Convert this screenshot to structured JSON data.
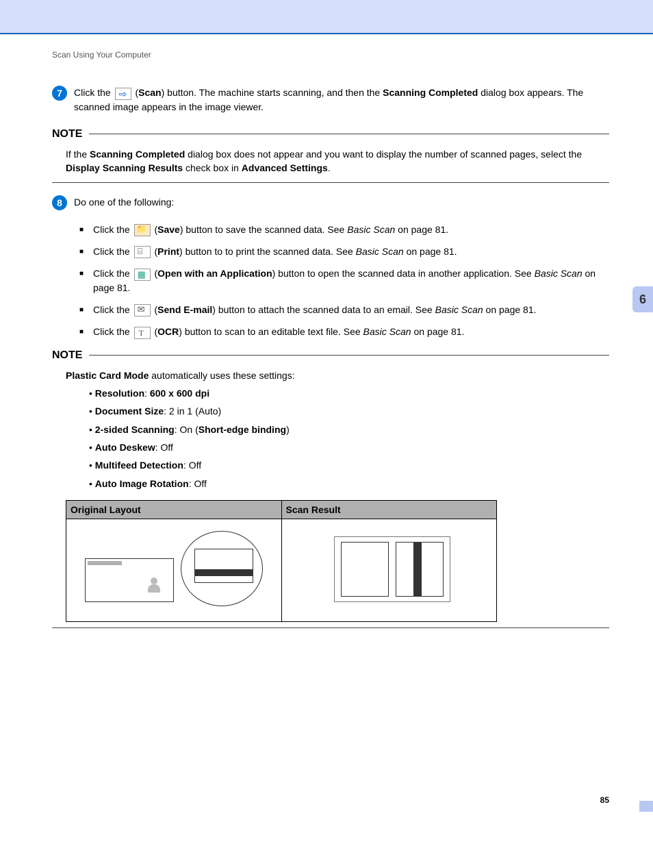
{
  "header": {
    "section": "Scan Using Your Computer"
  },
  "step7": {
    "num": "7",
    "pre": "Click the ",
    "btn": "Scan",
    "post1": ") button. The machine starts scanning, and then the ",
    "bold1": "Scanning Completed",
    "post2": " dialog box appears. The scanned image appears in the image viewer."
  },
  "note1": {
    "label": "NOTE",
    "t1": "If the ",
    "b1": "Scanning Completed",
    "t2": " dialog box does not appear and you want to display the number of scanned pages, select the ",
    "b2": "Display Scanning Results",
    "t3": " check box in ",
    "b3": "Advanced Settings",
    "t4": "."
  },
  "step8": {
    "num": "8",
    "text": "Do one of the following:"
  },
  "opts": {
    "save": {
      "pre": "Click the ",
      "btn": "Save",
      "post": ") button to save the scanned data. See ",
      "ref": "Basic Scan",
      "pg": " on page 81."
    },
    "print": {
      "pre": "Click the ",
      "btn": "Print",
      "post": ") button to to print the scanned data. See ",
      "ref": "Basic Scan",
      "pg": " on page 81."
    },
    "open": {
      "pre": "Click the ",
      "btn": "Open with an Application",
      "post": ") button to open the scanned data in another application. See ",
      "ref": "Basic Scan",
      "pg": " on page 81."
    },
    "mail": {
      "pre": "Click the ",
      "btn": "Send E-mail",
      "post": ") button to attach the scanned data to an email. See ",
      "ref": "Basic Scan",
      "pg": " on page 81."
    },
    "ocr": {
      "pre": "Click the ",
      "btn": "OCR",
      "post": ") button to scan to an editable text file. See ",
      "ref": "Basic Scan",
      "pg": " on page 81."
    }
  },
  "note2": {
    "label": "NOTE",
    "lead_b": "Plastic Card Mode",
    "lead_t": " automatically uses these settings:",
    "items": [
      {
        "b1": "Resolution",
        "t1": ": ",
        "b2": "600 x 600 dpi",
        "t2": ""
      },
      {
        "b1": "Document Size",
        "t1": ": 2 in 1 (Auto)",
        "b2": "",
        "t2": ""
      },
      {
        "b1": "2-sided Scanning",
        "t1": ": On (",
        "b2": "Short-edge binding",
        "t2": ")"
      },
      {
        "b1": "Auto Deskew",
        "t1": ": Off",
        "b2": "",
        "t2": ""
      },
      {
        "b1": "Multifeed Detection",
        "t1": ": Off",
        "b2": "",
        "t2": ""
      },
      {
        "b1": "Auto Image Rotation",
        "t1": ": Off",
        "b2": "",
        "t2": ""
      }
    ]
  },
  "table": {
    "h1": "Original Layout",
    "h2": "Scan Result"
  },
  "tab": {
    "num": "6"
  },
  "page": {
    "num": "85"
  }
}
